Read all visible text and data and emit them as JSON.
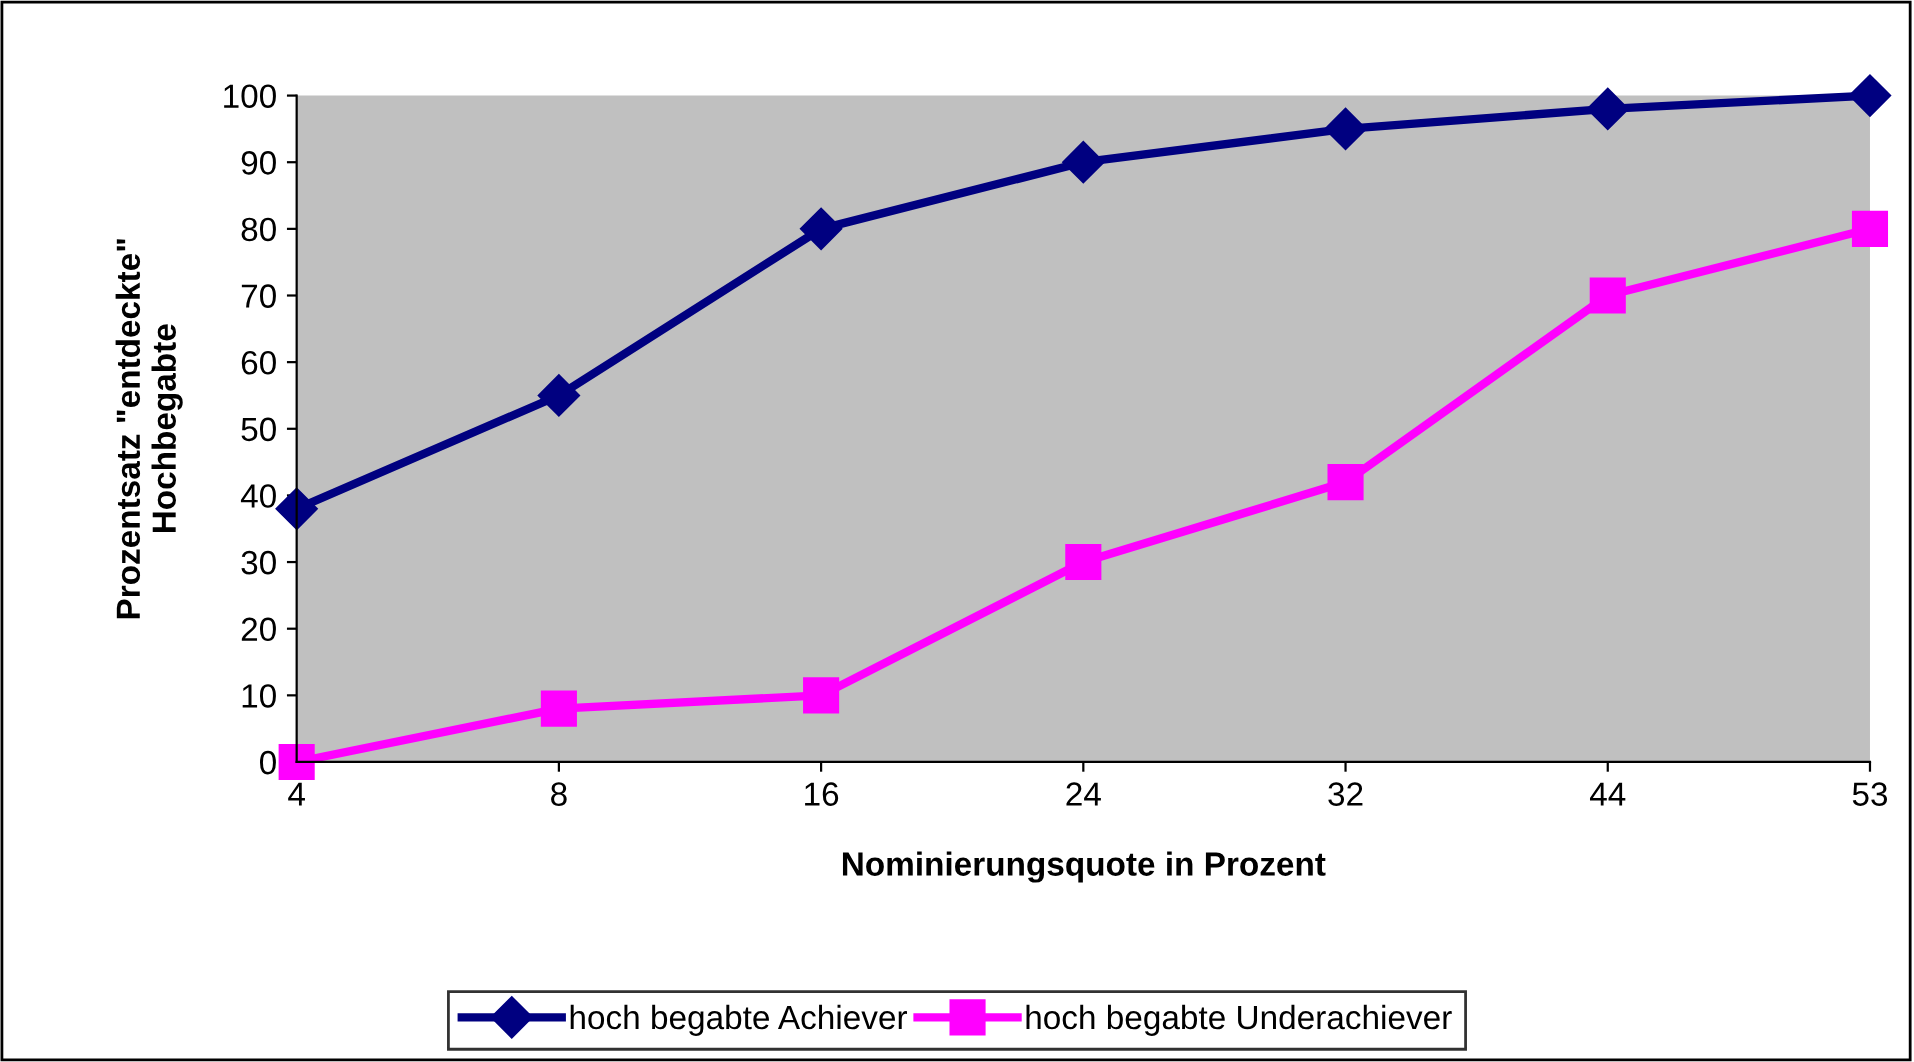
{
  "chart_data": {
    "type": "line",
    "xlabel": "Nominierungsquote in Prozent",
    "ylabel": "Prozentsatz \"entdeckte\"\nHochbegabte",
    "categories": [
      "4",
      "8",
      "16",
      "24",
      "32",
      "44",
      "53"
    ],
    "ylim": [
      0,
      100
    ],
    "yticks": [
      0,
      10,
      20,
      30,
      40,
      50,
      60,
      70,
      80,
      90,
      100
    ],
    "grid": false,
    "legend": "bottom",
    "series": [
      {
        "name": "hoch begabte Achiever",
        "color": "#000080",
        "marker": "diamond",
        "values": [
          38,
          55,
          80,
          90,
          95,
          98,
          100
        ]
      },
      {
        "name": "hoch begabte Underachiever",
        "color": "#ff00ff",
        "marker": "square",
        "values": [
          0,
          8,
          10,
          30,
          42,
          70,
          80
        ]
      }
    ]
  }
}
